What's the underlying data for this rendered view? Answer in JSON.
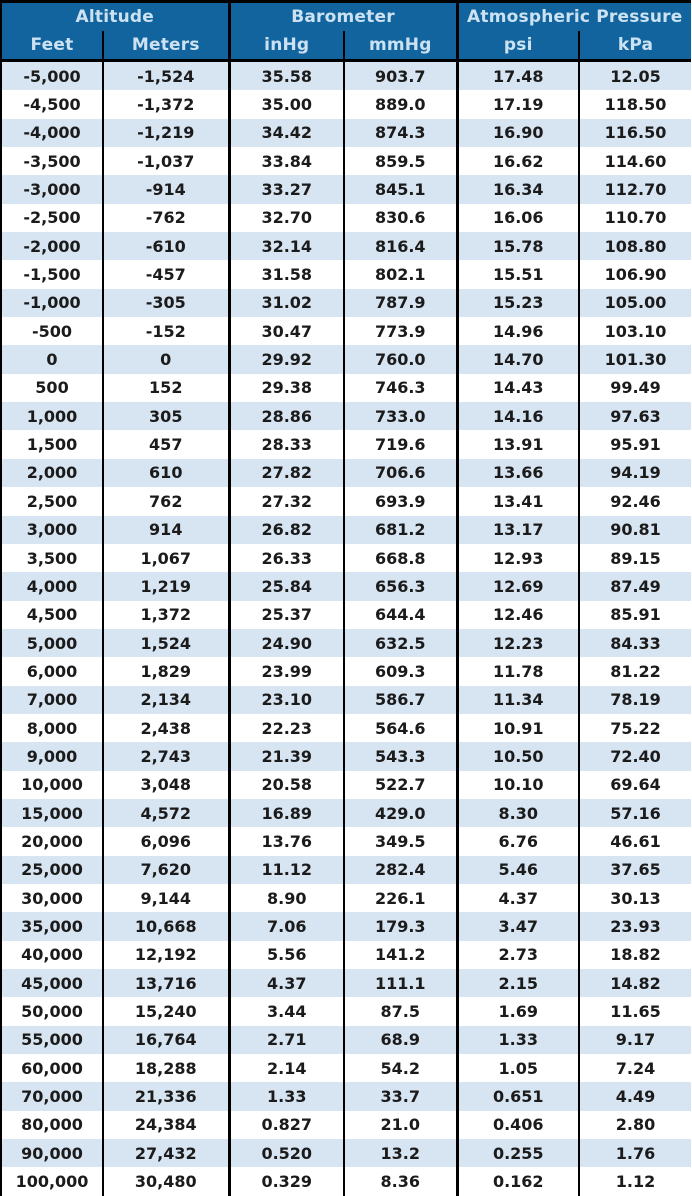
{
  "colors": {
    "header_bg": "#11649D",
    "header_text": "#CCE2F2",
    "stripe_blue": "#D7E4F1",
    "row_white": "#FFFFFF",
    "grid_black": "#000000",
    "data_text": "#1B1B1B"
  },
  "chart_data": {
    "type": "table",
    "title": "Altitude vs Barometer and Atmospheric Pressure conversion table",
    "column_groups": [
      {
        "label": "Altitude",
        "span": 2
      },
      {
        "label": "Barometer",
        "span": 2
      },
      {
        "label": "Atmospheric Pressure",
        "span": 2
      }
    ],
    "columns": [
      "Feet",
      "Meters",
      "inHg",
      "mmHg",
      "psi",
      "kPa"
    ],
    "column_keys": [
      "feet",
      "meters",
      "inhg",
      "mmhg",
      "psi",
      "kpa"
    ],
    "rows": [
      [
        "-5,000",
        "-1,524",
        "35.58",
        "903.7",
        "17.48",
        "12.05"
      ],
      [
        "-4,500",
        "-1,372",
        "35.00",
        "889.0",
        "17.19",
        "118.50"
      ],
      [
        "-4,000",
        "-1,219",
        "34.42",
        "874.3",
        "16.90",
        "116.50"
      ],
      [
        "-3,500",
        "-1,037",
        "33.84",
        "859.5",
        "16.62",
        "114.60"
      ],
      [
        "-3,000",
        "-914",
        "33.27",
        "845.1",
        "16.34",
        "112.70"
      ],
      [
        "-2,500",
        "-762",
        "32.70",
        "830.6",
        "16.06",
        "110.70"
      ],
      [
        "-2,000",
        "-610",
        "32.14",
        "816.4",
        "15.78",
        "108.80"
      ],
      [
        "-1,500",
        "-457",
        "31.58",
        "802.1",
        "15.51",
        "106.90"
      ],
      [
        "-1,000",
        "-305",
        "31.02",
        "787.9",
        "15.23",
        "105.00"
      ],
      [
        "-500",
        "-152",
        "30.47",
        "773.9",
        "14.96",
        "103.10"
      ],
      [
        "0",
        "0",
        "29.92",
        "760.0",
        "14.70",
        "101.30"
      ],
      [
        "500",
        "152",
        "29.38",
        "746.3",
        "14.43",
        "99.49"
      ],
      [
        "1,000",
        "305",
        "28.86",
        "733.0",
        "14.16",
        "97.63"
      ],
      [
        "1,500",
        "457",
        "28.33",
        "719.6",
        "13.91",
        "95.91"
      ],
      [
        "2,000",
        "610",
        "27.82",
        "706.6",
        "13.66",
        "94.19"
      ],
      [
        "2,500",
        "762",
        "27.32",
        "693.9",
        "13.41",
        "92.46"
      ],
      [
        "3,000",
        "914",
        "26.82",
        "681.2",
        "13.17",
        "90.81"
      ],
      [
        "3,500",
        "1,067",
        "26.33",
        "668.8",
        "12.93",
        "89.15"
      ],
      [
        "4,000",
        "1,219",
        "25.84",
        "656.3",
        "12.69",
        "87.49"
      ],
      [
        "4,500",
        "1,372",
        "25.37",
        "644.4",
        "12.46",
        "85.91"
      ],
      [
        "5,000",
        "1,524",
        "24.90",
        "632.5",
        "12.23",
        "84.33"
      ],
      [
        "6,000",
        "1,829",
        "23.99",
        "609.3",
        "11.78",
        "81.22"
      ],
      [
        "7,000",
        "2,134",
        "23.10",
        "586.7",
        "11.34",
        "78.19"
      ],
      [
        "8,000",
        "2,438",
        "22.23",
        "564.6",
        "10.91",
        "75.22"
      ],
      [
        "9,000",
        "2,743",
        "21.39",
        "543.3",
        "10.50",
        "72.40"
      ],
      [
        "10,000",
        "3,048",
        "20.58",
        "522.7",
        "10.10",
        "69.64"
      ],
      [
        "15,000",
        "4,572",
        "16.89",
        "429.0",
        "8.30",
        "57.16"
      ],
      [
        "20,000",
        "6,096",
        "13.76",
        "349.5",
        "6.76",
        "46.61"
      ],
      [
        "25,000",
        "7,620",
        "11.12",
        "282.4",
        "5.46",
        "37.65"
      ],
      [
        "30,000",
        "9,144",
        "8.90",
        "226.1",
        "4.37",
        "30.13"
      ],
      [
        "35,000",
        "10,668",
        "7.06",
        "179.3",
        "3.47",
        "23.93"
      ],
      [
        "40,000",
        "12,192",
        "5.56",
        "141.2",
        "2.73",
        "18.82"
      ],
      [
        "45,000",
        "13,716",
        "4.37",
        "111.1",
        "2.15",
        "14.82"
      ],
      [
        "50,000",
        "15,240",
        "3.44",
        "87.5",
        "1.69",
        "11.65"
      ],
      [
        "55,000",
        "16,764",
        "2.71",
        "68.9",
        "1.33",
        "9.17"
      ],
      [
        "60,000",
        "18,288",
        "2.14",
        "54.2",
        "1.05",
        "7.24"
      ],
      [
        "70,000",
        "21,336",
        "1.33",
        "33.7",
        "0.651",
        "4.49"
      ],
      [
        "80,000",
        "24,384",
        "0.827",
        "21.0",
        "0.406",
        "2.80"
      ],
      [
        "90,000",
        "27,432",
        "0.520",
        "13.2",
        "0.255",
        "1.76"
      ],
      [
        "100,000",
        "30,480",
        "0.329",
        "8.36",
        "0.162",
        "1.12"
      ]
    ]
  }
}
